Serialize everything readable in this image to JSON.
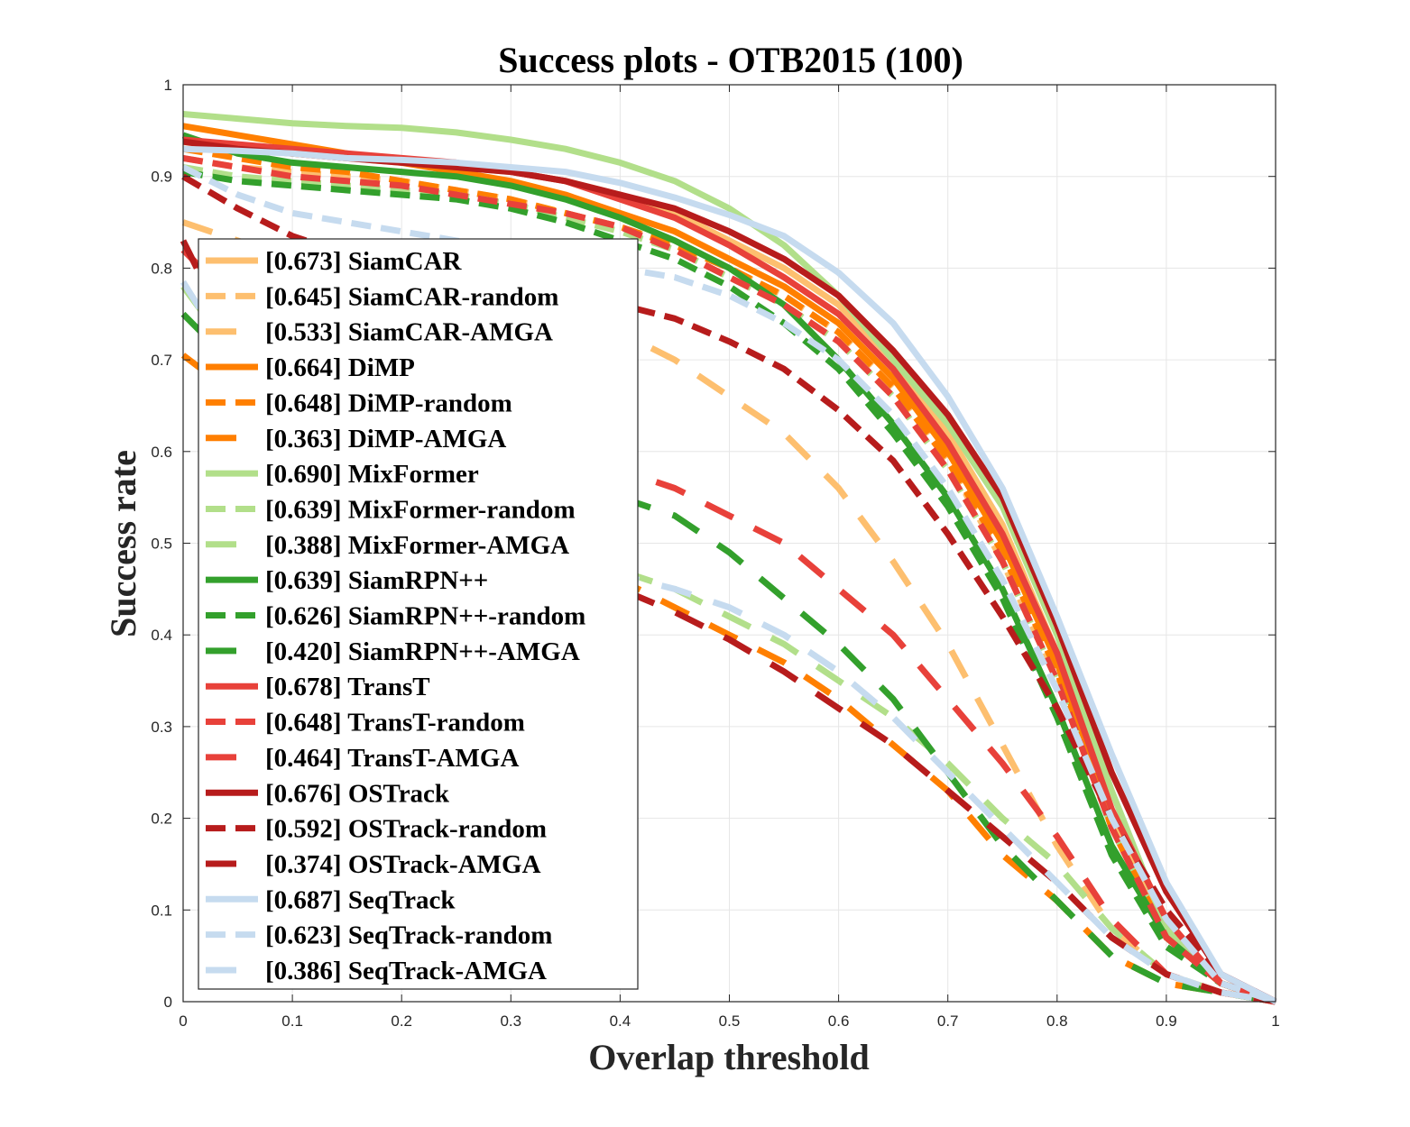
{
  "chart_data": {
    "type": "line",
    "title": "Success plots - OTB2015 (100)",
    "xlabel": "Overlap threshold",
    "ylabel": "Success rate",
    "xlim": [
      0,
      1
    ],
    "ylim": [
      0,
      1
    ],
    "grid": true,
    "legend_position": "left-inside",
    "x": [
      0,
      0.05,
      0.1,
      0.15,
      0.2,
      0.25,
      0.3,
      0.35,
      0.4,
      0.45,
      0.5,
      0.55,
      0.6,
      0.65,
      0.7,
      0.75,
      0.8,
      0.85,
      0.9,
      0.95,
      1.0
    ],
    "x_ticks": [
      "0",
      "0.1",
      "0.2",
      "0.3",
      "0.4",
      "0.5",
      "0.6",
      "0.7",
      "0.8",
      "0.9",
      "1"
    ],
    "y_ticks": [
      "0",
      "0.1",
      "0.2",
      "0.3",
      "0.4",
      "0.5",
      "0.6",
      "0.7",
      "0.8",
      "0.9",
      "1"
    ],
    "colors": {
      "SiamCAR": "#fdbf6f",
      "DiMP": "#ff7f00",
      "MixFormer": "#b2df8a",
      "SiamRPN++": "#33a02c",
      "TransT": "#e8413a",
      "OSTrack": "#b71c1c",
      "SeqTrack": "#c6dbef"
    },
    "series": [
      {
        "name": "SiamCAR",
        "legend_label": "[0.673] SiamCAR",
        "color": "#fdbf6f",
        "style": "solid",
        "values": [
          0.93,
          0.93,
          0.925,
          0.92,
          0.915,
          0.91,
          0.905,
          0.895,
          0.88,
          0.86,
          0.83,
          0.8,
          0.76,
          0.7,
          0.62,
          0.52,
          0.38,
          0.2,
          0.08,
          0.02,
          0.0
        ]
      },
      {
        "name": "SiamCAR-random",
        "legend_label": "[0.645] SiamCAR-random",
        "color": "#fdbf6f",
        "style": "dash",
        "values": [
          0.92,
          0.91,
          0.905,
          0.9,
          0.895,
          0.885,
          0.875,
          0.86,
          0.845,
          0.825,
          0.8,
          0.77,
          0.73,
          0.67,
          0.59,
          0.48,
          0.35,
          0.19,
          0.07,
          0.02,
          0.0
        ]
      },
      {
        "name": "SiamCAR-AMGA",
        "legend_label": "[0.533] SiamCAR-AMGA",
        "color": "#fdbf6f",
        "style": "longdash",
        "values": [
          0.85,
          0.83,
          0.81,
          0.8,
          0.79,
          0.78,
          0.77,
          0.75,
          0.73,
          0.7,
          0.66,
          0.62,
          0.56,
          0.48,
          0.39,
          0.28,
          0.17,
          0.08,
          0.03,
          0.01,
          0.0
        ]
      },
      {
        "name": "DiMP",
        "legend_label": "[0.664] DiMP",
        "color": "#ff7f00",
        "style": "solid",
        "values": [
          0.955,
          0.945,
          0.935,
          0.925,
          0.915,
          0.905,
          0.895,
          0.88,
          0.86,
          0.84,
          0.81,
          0.78,
          0.74,
          0.68,
          0.6,
          0.5,
          0.37,
          0.19,
          0.07,
          0.02,
          0.0
        ]
      },
      {
        "name": "DiMP-random",
        "legend_label": "[0.648] DiMP-random",
        "color": "#ff7f00",
        "style": "dash",
        "values": [
          0.93,
          0.92,
          0.91,
          0.905,
          0.895,
          0.885,
          0.875,
          0.86,
          0.845,
          0.825,
          0.8,
          0.77,
          0.73,
          0.67,
          0.59,
          0.49,
          0.36,
          0.19,
          0.07,
          0.02,
          0.0
        ]
      },
      {
        "name": "DiMP-AMGA",
        "legend_label": "[0.363] DiMP-AMGA",
        "color": "#ff7f00",
        "style": "longdash",
        "values": [
          0.705,
          0.66,
          0.62,
          0.58,
          0.55,
          0.52,
          0.5,
          0.48,
          0.46,
          0.43,
          0.4,
          0.37,
          0.33,
          0.28,
          0.23,
          0.16,
          0.11,
          0.05,
          0.02,
          0.01,
          0.0
        ]
      },
      {
        "name": "MixFormer",
        "legend_label": "[0.690] MixFormer",
        "color": "#b2df8a",
        "style": "solid",
        "values": [
          0.968,
          0.963,
          0.958,
          0.955,
          0.953,
          0.948,
          0.94,
          0.93,
          0.915,
          0.895,
          0.865,
          0.825,
          0.77,
          0.7,
          0.63,
          0.54,
          0.4,
          0.23,
          0.08,
          0.02,
          0.0
        ]
      },
      {
        "name": "MixFormer-random",
        "legend_label": "[0.639] MixFormer-random",
        "color": "#b2df8a",
        "style": "dash",
        "values": [
          0.91,
          0.9,
          0.895,
          0.89,
          0.885,
          0.88,
          0.87,
          0.855,
          0.84,
          0.82,
          0.79,
          0.76,
          0.72,
          0.66,
          0.58,
          0.48,
          0.35,
          0.19,
          0.07,
          0.02,
          0.0
        ]
      },
      {
        "name": "MixFormer-AMGA",
        "legend_label": "[0.388] MixFormer-AMGA",
        "color": "#b2df8a",
        "style": "longdash",
        "values": [
          0.78,
          0.7,
          0.64,
          0.59,
          0.55,
          0.52,
          0.5,
          0.48,
          0.47,
          0.45,
          0.42,
          0.39,
          0.35,
          0.31,
          0.26,
          0.2,
          0.15,
          0.08,
          0.03,
          0.01,
          0.0
        ]
      },
      {
        "name": "SiamRPN++",
        "legend_label": "[0.639] SiamRPN++",
        "color": "#33a02c",
        "style": "solid",
        "values": [
          0.945,
          0.925,
          0.915,
          0.91,
          0.905,
          0.9,
          0.89,
          0.875,
          0.855,
          0.83,
          0.8,
          0.76,
          0.7,
          0.63,
          0.55,
          0.45,
          0.32,
          0.17,
          0.07,
          0.02,
          0.0
        ]
      },
      {
        "name": "SiamRPN++-random",
        "legend_label": "[0.626] SiamRPN++-random",
        "color": "#33a02c",
        "style": "dash",
        "values": [
          0.905,
          0.895,
          0.89,
          0.885,
          0.88,
          0.875,
          0.865,
          0.85,
          0.83,
          0.81,
          0.78,
          0.74,
          0.69,
          0.62,
          0.54,
          0.44,
          0.31,
          0.16,
          0.06,
          0.02,
          0.0
        ]
      },
      {
        "name": "SiamRPN++-AMGA",
        "legend_label": "[0.420] SiamRPN++-AMGA",
        "color": "#33a02c",
        "style": "longdash",
        "values": [
          0.75,
          0.69,
          0.65,
          0.62,
          0.6,
          0.58,
          0.57,
          0.56,
          0.55,
          0.53,
          0.49,
          0.44,
          0.39,
          0.33,
          0.25,
          0.17,
          0.11,
          0.05,
          0.02,
          0.01,
          0.0
        ]
      },
      {
        "name": "TransT",
        "legend_label": "[0.678] TransT",
        "color": "#e8413a",
        "style": "solid",
        "values": [
          0.94,
          0.935,
          0.93,
          0.925,
          0.92,
          0.915,
          0.905,
          0.895,
          0.875,
          0.855,
          0.825,
          0.79,
          0.75,
          0.69,
          0.61,
          0.51,
          0.38,
          0.21,
          0.09,
          0.02,
          0.0
        ]
      },
      {
        "name": "TransT-random",
        "legend_label": "[0.648] TransT-random",
        "color": "#e8413a",
        "style": "dash",
        "values": [
          0.92,
          0.91,
          0.9,
          0.895,
          0.89,
          0.88,
          0.87,
          0.86,
          0.845,
          0.82,
          0.79,
          0.76,
          0.72,
          0.66,
          0.58,
          0.48,
          0.35,
          0.19,
          0.07,
          0.02,
          0.0
        ]
      },
      {
        "name": "TransT-AMGA",
        "legend_label": "[0.464] TransT-AMGA",
        "color": "#e8413a",
        "style": "longdash",
        "values": [
          0.82,
          0.76,
          0.71,
          0.67,
          0.64,
          0.61,
          0.6,
          0.59,
          0.58,
          0.56,
          0.53,
          0.5,
          0.45,
          0.4,
          0.33,
          0.26,
          0.18,
          0.09,
          0.03,
          0.01,
          0.0
        ]
      },
      {
        "name": "OSTrack",
        "legend_label": "[0.676] OSTrack",
        "color": "#b71c1c",
        "style": "solid",
        "values": [
          0.938,
          0.93,
          0.925,
          0.92,
          0.915,
          0.91,
          0.905,
          0.895,
          0.88,
          0.865,
          0.84,
          0.81,
          0.77,
          0.71,
          0.64,
          0.55,
          0.41,
          0.25,
          0.12,
          0.03,
          0.0
        ]
      },
      {
        "name": "OSTrack-random",
        "legend_label": "[0.592] OSTrack-random",
        "color": "#b71c1c",
        "style": "dash",
        "values": [
          0.9,
          0.865,
          0.835,
          0.815,
          0.8,
          0.785,
          0.775,
          0.765,
          0.76,
          0.745,
          0.72,
          0.69,
          0.645,
          0.59,
          0.51,
          0.42,
          0.32,
          0.2,
          0.1,
          0.03,
          0.0
        ]
      },
      {
        "name": "OSTrack-AMGA",
        "legend_label": "[0.374] OSTrack-AMGA",
        "color": "#b71c1c",
        "style": "longdash",
        "values": [
          0.83,
          0.71,
          0.63,
          0.57,
          0.53,
          0.5,
          0.48,
          0.465,
          0.45,
          0.425,
          0.395,
          0.36,
          0.32,
          0.28,
          0.23,
          0.18,
          0.13,
          0.07,
          0.03,
          0.01,
          0.0
        ]
      },
      {
        "name": "SeqTrack",
        "legend_label": "[0.687] SeqTrack",
        "color": "#c6dbef",
        "style": "solid",
        "values": [
          0.93,
          0.928,
          0.925,
          0.92,
          0.918,
          0.915,
          0.91,
          0.905,
          0.893,
          0.877,
          0.858,
          0.835,
          0.795,
          0.74,
          0.66,
          0.56,
          0.42,
          0.27,
          0.13,
          0.03,
          0.0
        ]
      },
      {
        "name": "SeqTrack-random",
        "legend_label": "[0.623] SeqTrack-random",
        "color": "#c6dbef",
        "style": "dash",
        "values": [
          0.91,
          0.88,
          0.86,
          0.85,
          0.84,
          0.83,
          0.82,
          0.81,
          0.8,
          0.79,
          0.77,
          0.74,
          0.7,
          0.64,
          0.56,
          0.46,
          0.34,
          0.2,
          0.09,
          0.02,
          0.0
        ]
      },
      {
        "name": "SeqTrack-AMGA",
        "legend_label": "[0.386] SeqTrack-AMGA",
        "color": "#c6dbef",
        "style": "longdash",
        "values": [
          0.785,
          0.69,
          0.62,
          0.57,
          0.53,
          0.5,
          0.49,
          0.475,
          0.465,
          0.45,
          0.43,
          0.4,
          0.36,
          0.31,
          0.25,
          0.19,
          0.13,
          0.07,
          0.03,
          0.01,
          0.0
        ]
      }
    ]
  }
}
